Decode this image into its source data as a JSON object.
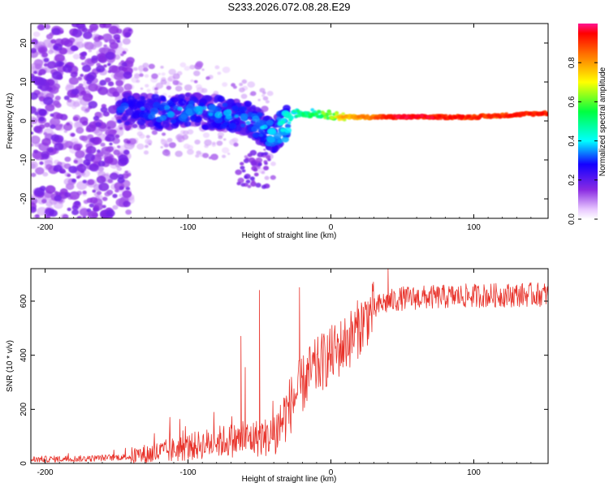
{
  "figure": {
    "title": "S233.2026.072.08.28.E29"
  },
  "chart_data": [
    {
      "type": "heatmap",
      "title": "S233.2026.072.08.28.E29",
      "xlabel": "Height of straight line (km)",
      "ylabel": "Frequency (Hz)",
      "xlim": [
        -210,
        152
      ],
      "ylim": [
        -25,
        25
      ],
      "xticks": [
        -200,
        -100,
        0,
        100
      ],
      "xtick_labels": [
        "-200",
        "-100",
        "0",
        "100"
      ],
      "yticks": [
        -20,
        -10,
        0,
        10,
        20
      ],
      "ytick_labels": [
        "-20",
        "-10",
        "0",
        "10",
        "20"
      ],
      "colorbar": {
        "label": "Normalized spectral amplitude",
        "range": [
          0,
          1
        ],
        "ticks": [
          0.0,
          0.2,
          0.4,
          0.6,
          0.8
        ],
        "tick_labels": [
          "0.0",
          "0.2",
          "0.4",
          "0.6",
          "0.8"
        ]
      },
      "ridge": {
        "description_points": [
          {
            "x": -145,
            "freq": 3,
            "amp": 0.25
          },
          {
            "x": -120,
            "freq": 2,
            "amp": 0.3
          },
          {
            "x": -100,
            "freq": 3,
            "amp": 0.3
          },
          {
            "x": -80,
            "freq": 2,
            "amp": 0.3
          },
          {
            "x": -60,
            "freq": 1,
            "amp": 0.3
          },
          {
            "x": -40,
            "freq": -4,
            "amp": 0.35
          },
          {
            "x": -25,
            "freq": 2,
            "amp": 0.45
          },
          {
            "x": -10,
            "freq": 2,
            "amp": 0.5
          },
          {
            "x": 10,
            "freq": 1,
            "amp": 0.75
          },
          {
            "x": 50,
            "freq": 1,
            "amp": 0.95
          },
          {
            "x": 100,
            "freq": 1,
            "amp": 0.9
          },
          {
            "x": 150,
            "freq": 2,
            "amp": 0.9
          }
        ]
      }
    },
    {
      "type": "line",
      "xlabel": "Height of straight line (km)",
      "ylabel": "SNR (10 * v/v)",
      "xlim": [
        -210,
        152
      ],
      "ylim": [
        0,
        720
      ],
      "xticks": [
        -200,
        -100,
        0,
        100
      ],
      "xtick_labels": [
        "-200",
        "-100",
        "0",
        "100"
      ],
      "yticks": [
        0,
        200,
        400,
        600
      ],
      "ytick_labels": [
        "0",
        "200",
        "400",
        "600"
      ],
      "series": [
        {
          "name": "SNR",
          "color": "#e8322a",
          "trend": [
            {
              "x": -210,
              "y": 15
            },
            {
              "x": -170,
              "y": 18
            },
            {
              "x": -140,
              "y": 25
            },
            {
              "x": -120,
              "y": 40
            },
            {
              "x": -100,
              "y": 60
            },
            {
              "x": -80,
              "y": 80
            },
            {
              "x": -60,
              "y": 90
            },
            {
              "x": -40,
              "y": 100
            },
            {
              "x": -35,
              "y": 150
            },
            {
              "x": -25,
              "y": 250
            },
            {
              "x": -15,
              "y": 330
            },
            {
              "x": -5,
              "y": 380
            },
            {
              "x": 5,
              "y": 420
            },
            {
              "x": 15,
              "y": 470
            },
            {
              "x": 25,
              "y": 540
            },
            {
              "x": 35,
              "y": 590
            },
            {
              "x": 50,
              "y": 610
            },
            {
              "x": 100,
              "y": 620
            },
            {
              "x": 152,
              "y": 625
            }
          ],
          "peaks": [
            {
              "x": -50,
              "y": 640
            },
            {
              "x": -63,
              "y": 470
            },
            {
              "x": -22,
              "y": 650
            },
            {
              "x": 40,
              "y": 720
            },
            {
              "x": -60,
              "y": 355
            }
          ]
        }
      ]
    }
  ]
}
